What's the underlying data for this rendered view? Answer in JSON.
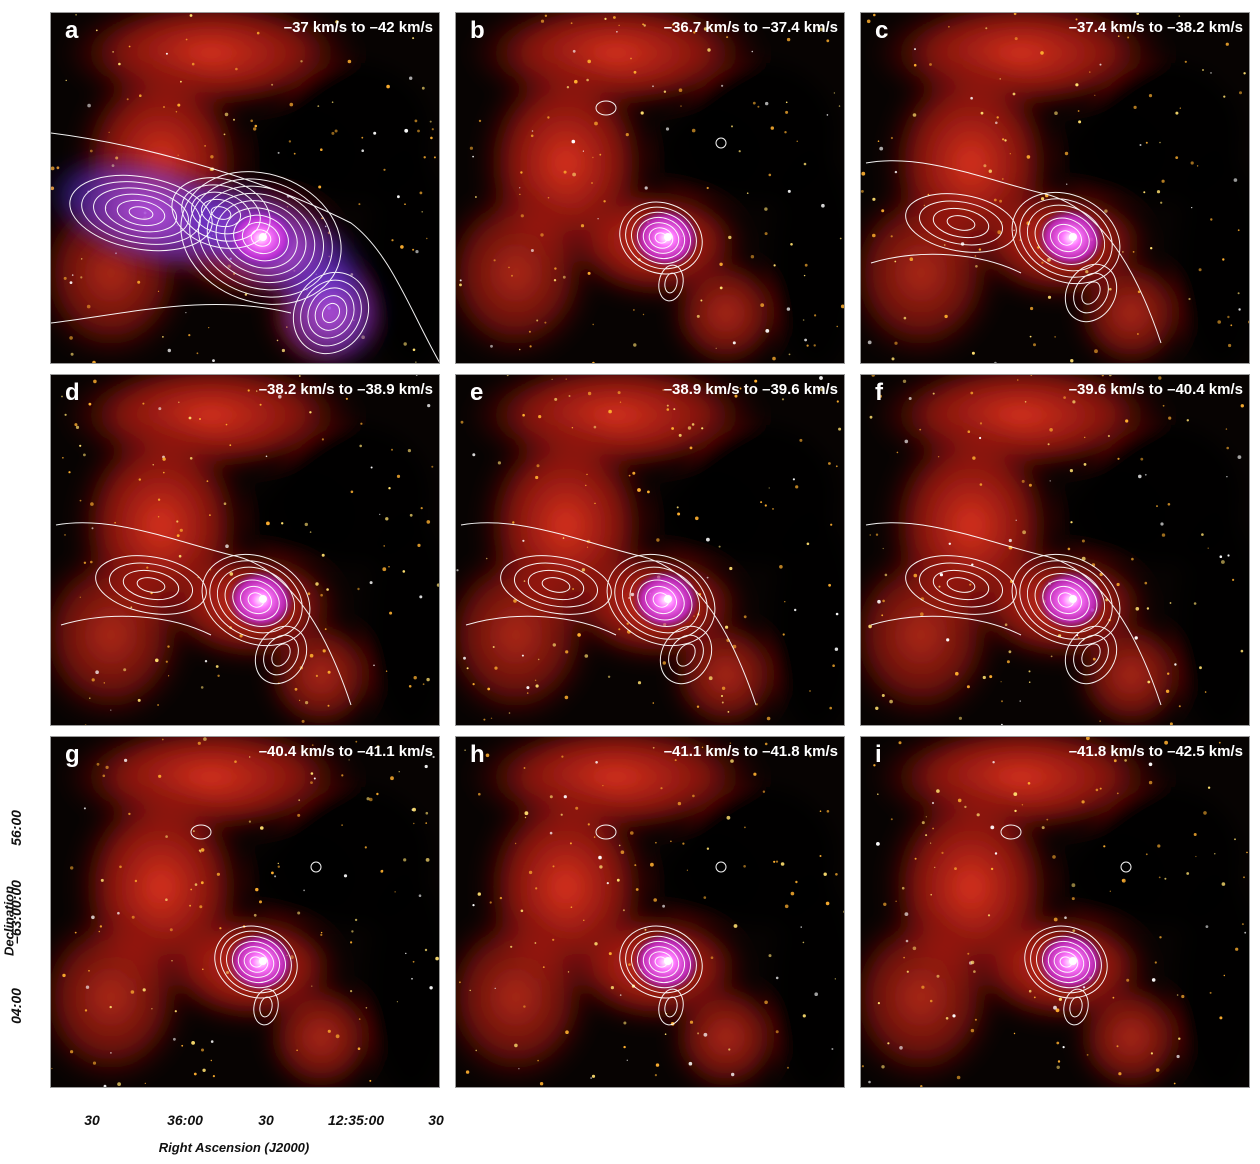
{
  "panels": [
    {
      "label": "a",
      "velocity": "–37 km/s to –42 km/s",
      "contours": "integrated"
    },
    {
      "label": "b",
      "velocity": "–36.7 km/s to –37.4 km/s",
      "contours": "core"
    },
    {
      "label": "c",
      "velocity": "–37.4 km/s to –38.2 km/s",
      "contours": "extended"
    },
    {
      "label": "d",
      "velocity": "–38.2 km/s to –38.9 km/s",
      "contours": "extended"
    },
    {
      "label": "e",
      "velocity": "–38.9 km/s to –39.6 km/s",
      "contours": "extended"
    },
    {
      "label": "f",
      "velocity": "–39.6 km/s to –40.4 km/s",
      "contours": "extended"
    },
    {
      "label": "g",
      "velocity": "–40.4 km/s to –41.1 km/s",
      "contours": "core"
    },
    {
      "label": "h",
      "velocity": "–41.1 km/s to –41.8 km/s",
      "contours": "core"
    },
    {
      "label": "i",
      "velocity": "–41.8 km/s to –42.5 km/s",
      "contours": "core"
    }
  ],
  "axes": {
    "x_title": "Right Ascension (J2000)",
    "y_title": "Declination",
    "x_ticks": [
      "30",
      "36:00",
      "30",
      "12:35:00",
      "30"
    ],
    "y_ticks": [
      "56:00",
      "–63:00:00",
      "04:00"
    ]
  },
  "colors": {
    "nebula": "#d8271a",
    "emission": "#ff30ff",
    "background": "#000000",
    "contour": "#ffffff",
    "panel_border": "#9a9a9a"
  }
}
